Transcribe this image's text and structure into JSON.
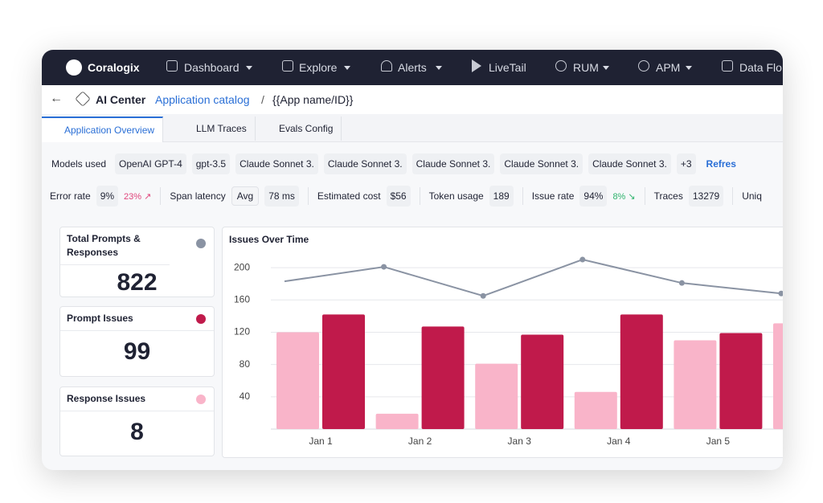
{
  "nav": {
    "brand": "Coralogix",
    "items": [
      "Dashboard",
      "Explore",
      "Alerts",
      "LiveTail",
      "RUM",
      "APM",
      "Data Flo"
    ]
  },
  "breadcrumb": {
    "section": "AI Center",
    "link": "Application catalog",
    "separator": "/",
    "current": "{{App name/ID}}"
  },
  "tabs": [
    "Application Overview",
    "LLM Traces",
    "Evals Config"
  ],
  "models": {
    "label": "Models used",
    "chips": [
      "OpenAI GPT-4",
      "gpt-3.5",
      "Claude Sonnet 3.",
      "Claude Sonnet 3.",
      "Claude Sonnet 3.",
      "Claude Sonnet 3.",
      "Claude Sonnet 3."
    ],
    "more": "+3",
    "action": "Refres"
  },
  "metrics": [
    {
      "label": "Error rate",
      "value": "9%",
      "delta": "23% ↗",
      "trend": "bad"
    },
    {
      "label": "Span latency",
      "select": "Avg",
      "value": "78 ms"
    },
    {
      "label": "Estimated cost",
      "value": "$56"
    },
    {
      "label": "Token usage",
      "value": "189"
    },
    {
      "label": "Issue rate",
      "value": "94%",
      "delta": "8% ↘",
      "trend": "good"
    },
    {
      "label": "Traces",
      "value": "13279"
    },
    {
      "label": "Uniq"
    }
  ],
  "cards": [
    {
      "title": "Total Prompts & Responses",
      "value": 822,
      "color": "#8a93a3"
    },
    {
      "title": "Prompt Issues",
      "value": 99,
      "color": "#c01a4b"
    },
    {
      "title": "Response Issues",
      "value": 8,
      "color": "#f9b4c9"
    }
  ],
  "chart_data": {
    "type": "bar",
    "title": "Issues Over Time",
    "categories": [
      "Jan 1",
      "Jan 2",
      "Jan 3",
      "Jan 4",
      "Jan 5",
      null
    ],
    "series": [
      {
        "color": "#f9b4c9",
        "values": [
          120,
          19,
          81,
          46,
          110,
          131
        ]
      },
      {
        "color": "#c01a4b",
        "values": [
          142,
          127,
          117,
          142,
          119,
          null
        ]
      },
      {
        "type": "line",
        "color": "#8a93a3",
        "values": [
          183,
          201,
          165,
          210,
          181,
          168
        ]
      }
    ],
    "ylim": [
      0,
      220
    ],
    "yticks": [
      40,
      80,
      120,
      160,
      200
    ],
    "grid": true
  }
}
